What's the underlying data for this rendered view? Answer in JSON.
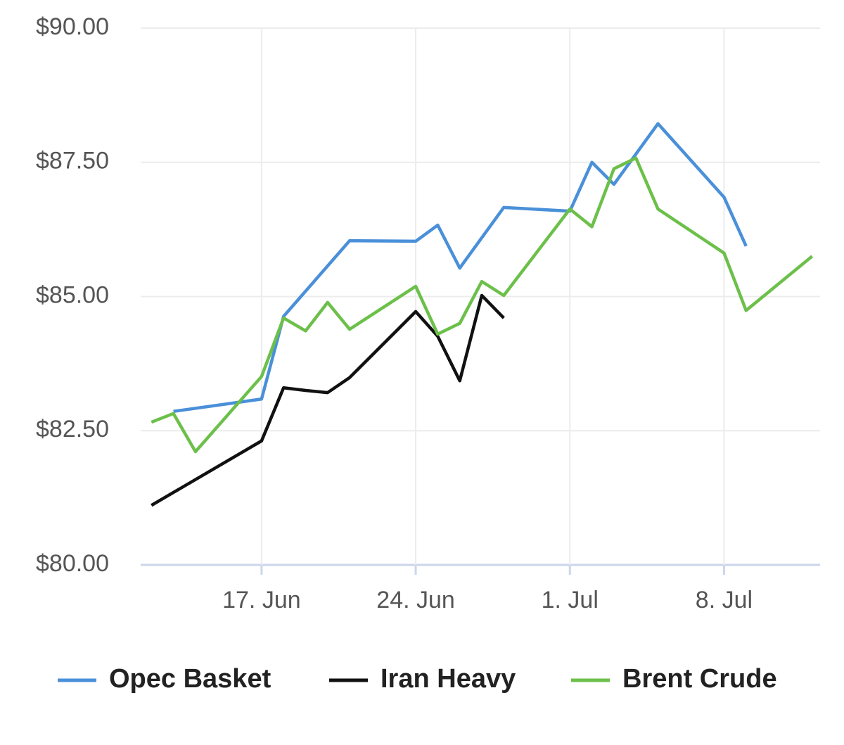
{
  "chart_data": {
    "type": "line",
    "ylim": [
      80,
      90
    ],
    "yticks": [
      {
        "value": 80,
        "label": "$80.00"
      },
      {
        "value": 82.5,
        "label": "$82.50"
      },
      {
        "value": 85,
        "label": "$85.00"
      },
      {
        "value": 87.5,
        "label": "$87.50"
      },
      {
        "value": 90,
        "label": "$90.00"
      }
    ],
    "xlim": [
      "06-11",
      "07-13"
    ],
    "xticks": [
      {
        "value": "06-17",
        "label": "17. Jun"
      },
      {
        "value": "06-24",
        "label": "24. Jun"
      },
      {
        "value": "07-01",
        "label": "1. Jul"
      },
      {
        "value": "07-08",
        "label": "8. Jul"
      }
    ],
    "grid": true,
    "legend": "bottom",
    "series": [
      {
        "name": "Opec Basket",
        "color": "#4a90d9",
        "x": [
          "06-13",
          "06-17",
          "06-18",
          "06-21",
          "06-24",
          "06-25",
          "06-26",
          "06-28",
          "07-01",
          "07-02",
          "07-03",
          "07-05",
          "07-08",
          "07-09"
        ],
        "values": [
          82.86,
          83.09,
          84.63,
          86.04,
          86.03,
          86.33,
          85.53,
          86.66,
          86.59,
          87.5,
          87.09,
          88.22,
          86.85,
          85.94
        ]
      },
      {
        "name": "Iran Heavy",
        "color": "#111111",
        "x": [
          "06-12",
          "06-13",
          "06-17",
          "06-18",
          "06-19",
          "06-20",
          "06-21",
          "06-24",
          "06-25",
          "06-26",
          "06-27",
          "06-28"
        ],
        "values": [
          81.11,
          81.35,
          82.31,
          83.3,
          83.25,
          83.21,
          83.49,
          84.72,
          84.26,
          83.43,
          85.02,
          84.6
        ]
      },
      {
        "name": "Brent Crude",
        "color": "#6cc04a",
        "x": [
          "06-12",
          "06-13",
          "06-14",
          "06-17",
          "06-18",
          "06-19",
          "06-20",
          "06-21",
          "06-24",
          "06-25",
          "06-26",
          "06-27",
          "06-28",
          "07-01",
          "07-02",
          "07-03",
          "07-04",
          "07-05",
          "07-08",
          "07-09",
          "07-12"
        ],
        "values": [
          82.66,
          82.82,
          82.11,
          83.51,
          84.6,
          84.36,
          84.89,
          84.39,
          85.19,
          84.3,
          84.5,
          85.28,
          85.02,
          86.63,
          86.3,
          87.38,
          87.58,
          86.63,
          85.81,
          84.74,
          85.75
        ]
      }
    ]
  }
}
